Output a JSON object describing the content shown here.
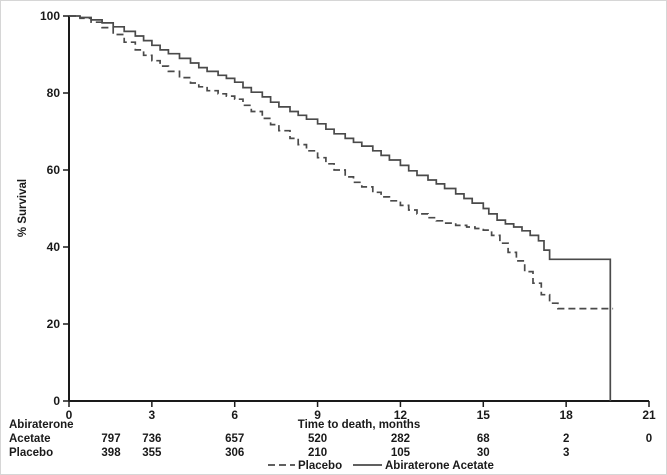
{
  "colors": {
    "curve": "#4a4a4a",
    "text": "#1a1a1a",
    "background": "#ffffff"
  },
  "chart_data": {
    "type": "line",
    "subtype": "kaplan-meier-step",
    "title": "",
    "xlabel": "Time to death, months",
    "ylabel": "% Survival",
    "xlim": [
      0,
      21
    ],
    "ylim": [
      0,
      100
    ],
    "x_ticks": [
      0,
      3,
      6,
      9,
      12,
      15,
      18,
      21
    ],
    "y_ticks": [
      0,
      20,
      40,
      60,
      80,
      100
    ],
    "grid": false,
    "legend_position": "bottom",
    "series": [
      {
        "name": "Abiraterone Acetate",
        "style": "solid",
        "points": [
          [
            0,
            100
          ],
          [
            0.4,
            99.6
          ],
          [
            0.8,
            99
          ],
          [
            1.2,
            98.2
          ],
          [
            1.6,
            97.2
          ],
          [
            2,
            96
          ],
          [
            2.4,
            94.8
          ],
          [
            2.7,
            93.6
          ],
          [
            3,
            92.4
          ],
          [
            3.3,
            91.2
          ],
          [
            3.6,
            90.2
          ],
          [
            4,
            89
          ],
          [
            4.4,
            87.8
          ],
          [
            4.7,
            86.6
          ],
          [
            5,
            85.6
          ],
          [
            5.4,
            84.6
          ],
          [
            5.7,
            83.8
          ],
          [
            6,
            82.8
          ],
          [
            6.3,
            81.4
          ],
          [
            6.6,
            80.2
          ],
          [
            7,
            79
          ],
          [
            7.3,
            77.6
          ],
          [
            7.6,
            76.4
          ],
          [
            8,
            75.2
          ],
          [
            8.3,
            74.2
          ],
          [
            8.6,
            73.2
          ],
          [
            9,
            72
          ],
          [
            9.3,
            70.6
          ],
          [
            9.6,
            69.4
          ],
          [
            10,
            68.2
          ],
          [
            10.3,
            67.2
          ],
          [
            10.6,
            66.2
          ],
          [
            11,
            65
          ],
          [
            11.3,
            63.8
          ],
          [
            11.6,
            62.6
          ],
          [
            12,
            61.2
          ],
          [
            12.3,
            59.8
          ],
          [
            12.6,
            58.6
          ],
          [
            13,
            57.4
          ],
          [
            13.3,
            56.4
          ],
          [
            13.6,
            55.2
          ],
          [
            14,
            53.8
          ],
          [
            14.3,
            52.6
          ],
          [
            14.6,
            51.4
          ],
          [
            15,
            50
          ],
          [
            15.2,
            48.6
          ],
          [
            15.5,
            47
          ],
          [
            15.8,
            46
          ],
          [
            16.1,
            45.2
          ],
          [
            16.4,
            44.2
          ],
          [
            16.7,
            43
          ],
          [
            17,
            41.6
          ],
          [
            17.2,
            39.2
          ],
          [
            17.4,
            36.8
          ],
          [
            19.6,
            36.8
          ],
          [
            19.6,
            0
          ]
        ]
      },
      {
        "name": "Placebo",
        "style": "dashed",
        "points": [
          [
            0,
            100
          ],
          [
            0.4,
            99.4
          ],
          [
            0.8,
            98.4
          ],
          [
            1.2,
            97
          ],
          [
            1.6,
            95.2
          ],
          [
            2,
            93.2
          ],
          [
            2.4,
            91.2
          ],
          [
            2.7,
            89.8
          ],
          [
            3,
            88.4
          ],
          [
            3.3,
            87
          ],
          [
            3.6,
            85.6
          ],
          [
            4,
            84
          ],
          [
            4.4,
            82.6
          ],
          [
            4.7,
            81.6
          ],
          [
            5,
            80.6
          ],
          [
            5.4,
            79.8
          ],
          [
            5.7,
            79.2
          ],
          [
            6,
            78.4
          ],
          [
            6.3,
            76.8
          ],
          [
            6.6,
            75.2
          ],
          [
            7,
            73.4
          ],
          [
            7.3,
            71.8
          ],
          [
            7.6,
            70.2
          ],
          [
            8,
            68.2
          ],
          [
            8.3,
            66.6
          ],
          [
            8.6,
            65
          ],
          [
            9,
            63.2
          ],
          [
            9.3,
            61.6
          ],
          [
            9.6,
            60
          ],
          [
            10,
            58.2
          ],
          [
            10.3,
            56.8
          ],
          [
            10.6,
            55.6
          ],
          [
            11,
            54.2
          ],
          [
            11.3,
            53
          ],
          [
            11.6,
            52
          ],
          [
            12,
            50.8
          ],
          [
            12.3,
            49.6
          ],
          [
            12.6,
            48.6
          ],
          [
            13,
            47.6
          ],
          [
            13.3,
            46.8
          ],
          [
            13.6,
            46.2
          ],
          [
            14,
            45.6
          ],
          [
            14.4,
            45.2
          ],
          [
            14.7,
            44.8
          ],
          [
            15,
            44.4
          ],
          [
            15.3,
            43
          ],
          [
            15.6,
            41
          ],
          [
            15.9,
            38.6
          ],
          [
            16.2,
            36.4
          ],
          [
            16.5,
            33.6
          ],
          [
            16.8,
            30.6
          ],
          [
            17.1,
            27.6
          ],
          [
            17.4,
            25.4
          ],
          [
            17.7,
            24
          ],
          [
            19.7,
            24
          ]
        ]
      }
    ],
    "risk_table": {
      "header": "Abiraterone",
      "rows": [
        {
          "label": "Acetate",
          "counts": [
            "797",
            "736",
            "657",
            "520",
            "282",
            "68",
            "2",
            "0"
          ]
        },
        {
          "label": "Placebo",
          "counts": [
            "398",
            "355",
            "306",
            "210",
            "105",
            "30",
            "3",
            ""
          ]
        }
      ]
    },
    "legend": [
      {
        "label": "Placebo",
        "style": "dashed"
      },
      {
        "label": "Abiraterone Acetate",
        "style": "solid"
      }
    ]
  }
}
